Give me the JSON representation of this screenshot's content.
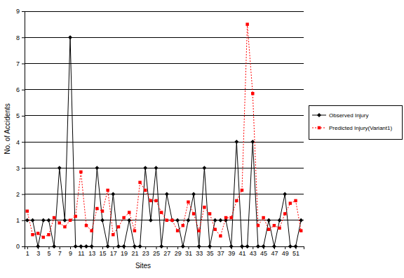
{
  "chart_data": {
    "type": "line",
    "x_label": "Sites",
    "y_label": "No. of Accidents",
    "x": [
      1,
      2,
      3,
      4,
      5,
      6,
      7,
      8,
      9,
      10,
      11,
      12,
      13,
      14,
      15,
      16,
      17,
      18,
      19,
      20,
      21,
      22,
      23,
      24,
      25,
      26,
      27,
      28,
      29,
      30,
      31,
      32,
      33,
      34,
      35,
      36,
      37,
      38,
      39,
      40,
      41,
      42,
      43,
      44,
      45,
      46,
      47,
      48,
      49,
      50,
      51,
      52
    ],
    "series": [
      {
        "name": "Observed Injury",
        "color": "#000000",
        "marker": "diamond",
        "line_style": "solid",
        "values": [
          1,
          1,
          0,
          1,
          1,
          0,
          3,
          1,
          8,
          0,
          0,
          0,
          0,
          3,
          1,
          0,
          2,
          0,
          0,
          1,
          0,
          0,
          3,
          1,
          3,
          0,
          2,
          1,
          1,
          0,
          1,
          2,
          0,
          3,
          0,
          1,
          1,
          1,
          0,
          4,
          0,
          0,
          4,
          0,
          0,
          1,
          0,
          1,
          2,
          0,
          0,
          1
        ]
      },
      {
        "name": "Predicted Injury(Variant1)",
        "color": "#ff0000",
        "marker": "square",
        "line_style": "dotted",
        "values": [
          1.35,
          0.45,
          0.5,
          0.35,
          0.45,
          1.1,
          0.9,
          0.75,
          1.0,
          1.15,
          2.85,
          0.8,
          0.6,
          1.45,
          1.35,
          2.15,
          0.45,
          0.75,
          1.1,
          1.3,
          0.6,
          2.45,
          2.15,
          1.75,
          1.75,
          1.3,
          1.0,
          1.0,
          0.6,
          0.8,
          1.7,
          1.25,
          0.6,
          1.5,
          1.25,
          0.65,
          0.4,
          1.1,
          1.1,
          1.75,
          2.15,
          8.5,
          5.85,
          0.8,
          1.1,
          0.65,
          0.8,
          0.7,
          1.25,
          1.65,
          1.75,
          0.6
        ]
      }
    ],
    "xlim": [
      0.5,
      52.5
    ],
    "xticks": [
      1,
      3,
      5,
      7,
      9,
      11,
      13,
      15,
      17,
      19,
      21,
      23,
      25,
      27,
      29,
      31,
      33,
      35,
      37,
      39,
      41,
      43,
      45,
      47,
      49,
      51
    ],
    "ylim": [
      0,
      9
    ],
    "yticks": [
      0,
      1,
      2,
      3,
      4,
      5,
      6,
      7,
      8,
      9
    ],
    "grid": true,
    "legend": "right"
  }
}
